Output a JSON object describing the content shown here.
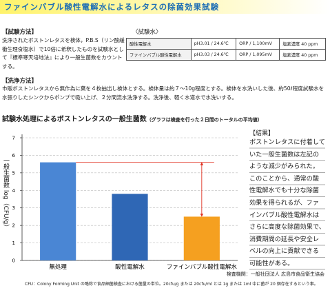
{
  "header": {
    "title": "ファインバブル酸性電解水によるレタスの除菌効果試験"
  },
  "method": {
    "heading": "【試験方法】",
    "text": "洗浄されたボストンレタスを検体，P.B.S（リン酸緩衝生理食塩水）で10倍に希釈したものを試験水として『標準寒天培地法』により一般生菌数をカウントする。"
  },
  "test_water": {
    "heading": "〈試験水〉",
    "rows": [
      [
        "酸性電解水",
        "pH3.01 / 24.6℃",
        "ORP / 1,100mV",
        "塩素濃度 40 ppm"
      ],
      [
        "ファインバブル酸性電解水",
        "pH3.03 / 24.6℃",
        "ORP / 1,095mV",
        "塩素濃度 40 ppm"
      ]
    ]
  },
  "washing": {
    "heading": "【洗浄方法】",
    "text": "市販ボストンレタスから無作為に葉を４枚抽出し検体とする。検体量は約７〜10g程度とする。検体を水洗いした後、約50ℓ程度試験水を水張りしたシンクからポンプで吸い上げ、２分間流水洗浄する。洗浄後、軽く水道水で水洗いする。"
  },
  "chart_data": {
    "type": "bar",
    "title": "試験水処理によるボストンレタスの一般生菌数",
    "subtitle": "（グラフは検査を行った２日間のトータルの平均値）",
    "y_label": "一般生菌数 log（CFU/g）",
    "categories": [
      "無処理",
      "酸性電解水",
      "ファインバブル酸性電解水"
    ],
    "values": [
      5.6,
      3.8,
      2.5
    ],
    "colors": [
      "#4a86d4",
      "#2f67b5",
      "#f5a020"
    ],
    "ylim": [
      0,
      7
    ],
    "yticks": [
      0,
      1,
      2,
      3,
      4,
      5,
      6,
      7
    ],
    "grid": true
  },
  "result": {
    "heading": "【結果】",
    "text": "ボストンレタスに付着していた一般生菌数は左記のような減少がみられた。このことから、通常の酸性電解水でも十分な除菌効果を得られるが、ファインバブル酸性電解水はさらに高度な除菌効果で、消費期間の延長や安全レベルの向上に貢献できる可能性がある。"
  },
  "inspection": "検査機関：一般社団法人 広島市食品衛生協会",
  "footnote": "CFU：Colony Forming Unit の略称で食品細菌検査における菌量の単位。20cfu/g または 20cfu/ml とは 1g または 1ml 中に菌が 20 個存在するという事。"
}
